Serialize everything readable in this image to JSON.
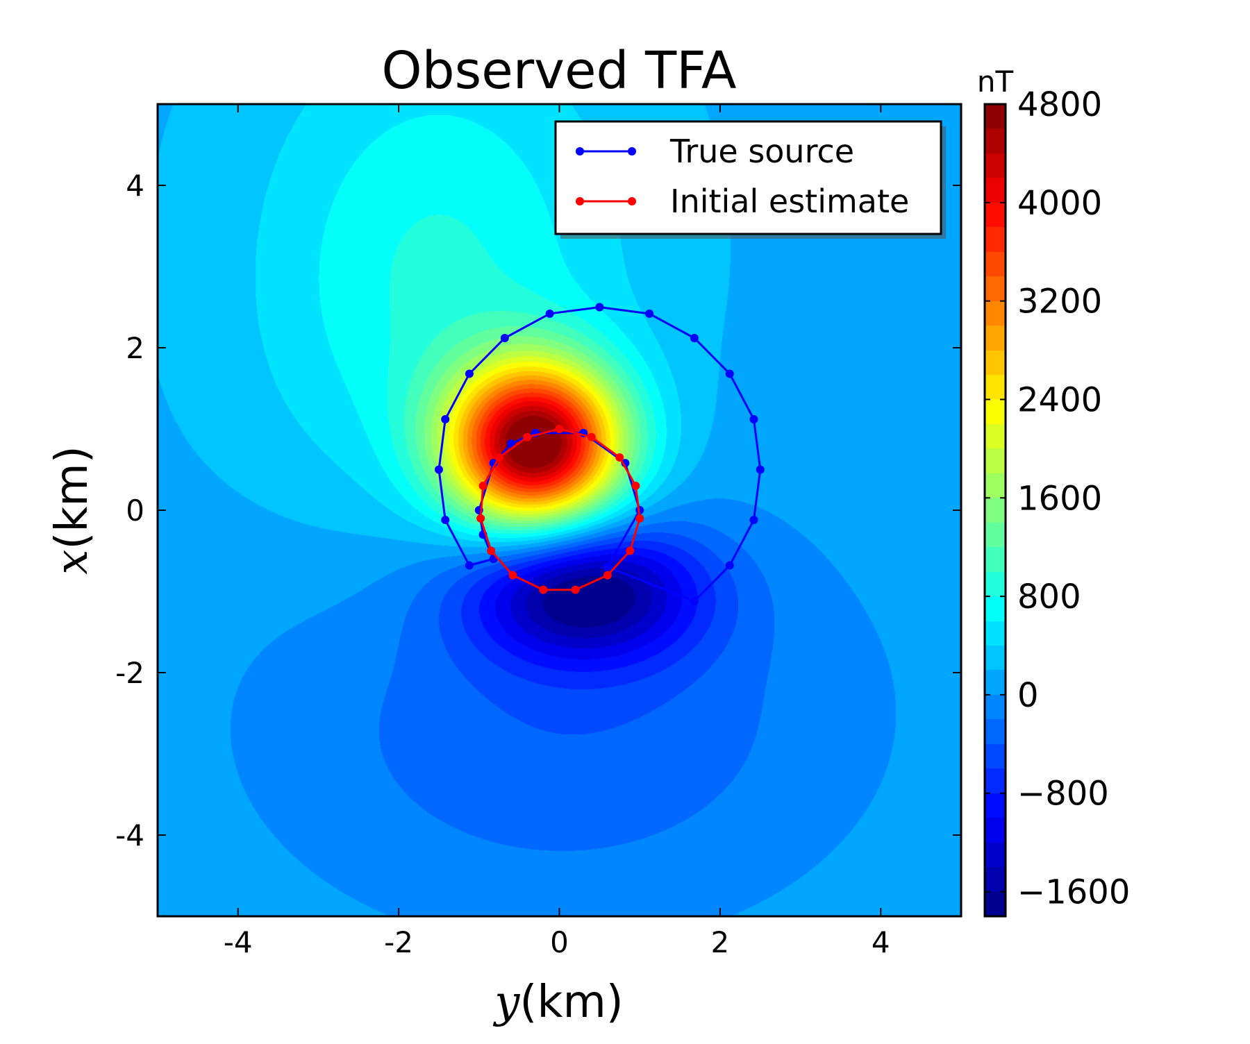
{
  "chart_data": {
    "type": "heatmap",
    "title": "Observed TFA",
    "xlabel": {
      "var": "y",
      "unit": "(km)"
    },
    "ylabel": {
      "var": "x",
      "unit": "(km)"
    },
    "xlim": [
      -5,
      5
    ],
    "ylim": [
      -5,
      5
    ],
    "x_ticks": [
      -4,
      -2,
      0,
      2,
      4
    ],
    "y_ticks": [
      -4,
      -2,
      0,
      2,
      4
    ],
    "x_tick_labels": [
      "-4",
      "-2",
      "0",
      "2",
      "4"
    ],
    "y_tick_labels": [
      "-4",
      "-2",
      "0",
      "2",
      "4"
    ],
    "colormap": "jet",
    "colorbar": {
      "unit": "nT",
      "min": -1800,
      "max": 4800,
      "ticks": [
        4800,
        4000,
        3200,
        2400,
        1600,
        800,
        0,
        -800,
        -1600
      ],
      "tick_labels": [
        "4800",
        "4000",
        "3200",
        "2400",
        "1600",
        "800",
        "0",
        "−800",
        "−1600"
      ]
    },
    "field_sources": [
      {
        "y": -0.3,
        "x": 0.8,
        "amp": 4700,
        "sigma_y": 0.75,
        "sigma_x": 0.7
      },
      {
        "y": 0.3,
        "x": -1.0,
        "amp": -1800,
        "sigma_y": 1.0,
        "sigma_x": 0.6
      },
      {
        "y": 0.0,
        "x": -2.5,
        "amp": -550,
        "sigma_y": 2.6,
        "sigma_x": 1.8
      },
      {
        "y": -1.5,
        "x": 2.8,
        "amp": 700,
        "sigma_y": 1.6,
        "sigma_x": 2.2
      }
    ],
    "background_nT": 150,
    "series": [
      {
        "name": "True source",
        "color": "#0000ff",
        "points": [
          {
            "y": 0.5,
            "x": 2.5
          },
          {
            "y": 1.12,
            "x": 2.42
          },
          {
            "y": 1.68,
            "x": 2.12
          },
          {
            "y": 2.12,
            "x": 1.68
          },
          {
            "y": 2.42,
            "x": 1.12
          },
          {
            "y": 2.5,
            "x": 0.5
          },
          {
            "y": 2.42,
            "x": -0.12
          },
          {
            "y": 2.12,
            "x": -0.68
          },
          {
            "y": 1.68,
            "x": -1.12
          },
          {
            "y": 0.6,
            "x": -0.7
          },
          {
            "y": 1.0,
            "x": 0.0
          },
          {
            "y": 0.82,
            "x": 0.58
          },
          {
            "y": 0.3,
            "x": 0.95
          },
          {
            "y": -0.3,
            "x": 0.95
          },
          {
            "y": -0.6,
            "x": 0.82
          },
          {
            "y": -0.82,
            "x": 0.58
          },
          {
            "y": -1.0,
            "x": 0.0
          },
          {
            "y": -0.95,
            "x": -0.3
          },
          {
            "y": -0.82,
            "x": -0.6
          },
          {
            "y": -1.12,
            "x": -0.68
          },
          {
            "y": -1.42,
            "x": -0.12
          },
          {
            "y": -1.5,
            "x": 0.5
          },
          {
            "y": -1.42,
            "x": 1.12
          },
          {
            "y": -1.12,
            "x": 1.68
          },
          {
            "y": -0.68,
            "x": 2.12
          },
          {
            "y": -0.12,
            "x": 2.42
          },
          {
            "y": 0.5,
            "x": 2.5
          }
        ]
      },
      {
        "name": "Initial estimate",
        "color": "#ff0000",
        "points": [
          {
            "y": 0.0,
            "x": 1.0
          },
          {
            "y": 0.4,
            "x": 0.9
          },
          {
            "y": 0.75,
            "x": 0.65
          },
          {
            "y": 0.95,
            "x": 0.3
          },
          {
            "y": 1.0,
            "x": -0.1
          },
          {
            "y": 0.88,
            "x": -0.5
          },
          {
            "y": 0.6,
            "x": -0.8
          },
          {
            "y": 0.2,
            "x": -0.98
          },
          {
            "y": -0.2,
            "x": -0.98
          },
          {
            "y": -0.58,
            "x": -0.8
          },
          {
            "y": -0.85,
            "x": -0.5
          },
          {
            "y": -0.98,
            "x": -0.1
          },
          {
            "y": -0.95,
            "x": 0.3
          },
          {
            "y": -0.75,
            "x": 0.65
          },
          {
            "y": -0.4,
            "x": 0.9
          },
          {
            "y": 0.0,
            "x": 1.0
          }
        ]
      }
    ],
    "legend_position": "top-right",
    "grid": false
  }
}
